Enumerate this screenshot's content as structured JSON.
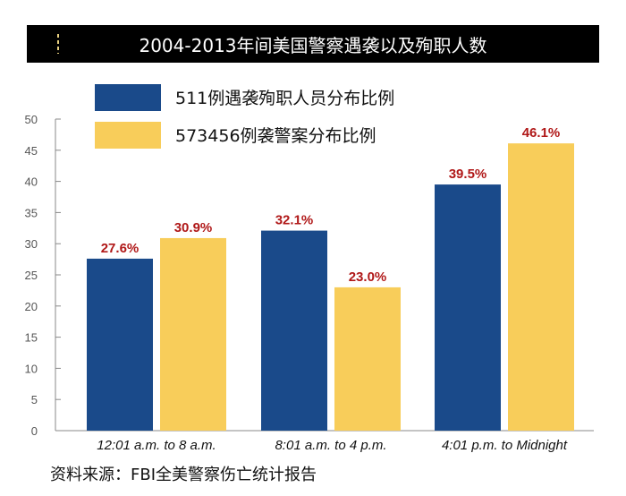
{
  "chart_data": {
    "type": "bar",
    "title": "2004-2013年间美国警察遇袭以及殉职人数",
    "categories": [
      "12:01 a.m. to 8 a.m.",
      "8:01 a.m. to 4 p.m.",
      "4:01 p.m. to Midnight"
    ],
    "series": [
      {
        "name": "511例遇袭殉职人员分布比例",
        "values": [
          27.6,
          32.1,
          39.5
        ],
        "labels": [
          "27.6%",
          "32.1%",
          "39.5%"
        ],
        "color": "#1a4a8a"
      },
      {
        "name": "573456例袭警案分布比例",
        "values": [
          30.9,
          23.0,
          46.1
        ],
        "labels": [
          "30.9%",
          "23.0%",
          "46.1%"
        ],
        "color": "#f8cd5a"
      }
    ],
    "ylim": [
      0,
      50
    ],
    "yticks": [
      "0",
      "5",
      "10",
      "15",
      "20",
      "25",
      "30",
      "35",
      "40",
      "45",
      "50"
    ],
    "legend_position": "top-left",
    "grid": false
  },
  "source": "资料来源：FBI全美警察伤亡统计报告",
  "colors": {
    "title_bg": "#000000",
    "data_label": "#b01818",
    "axis": "#888888"
  }
}
